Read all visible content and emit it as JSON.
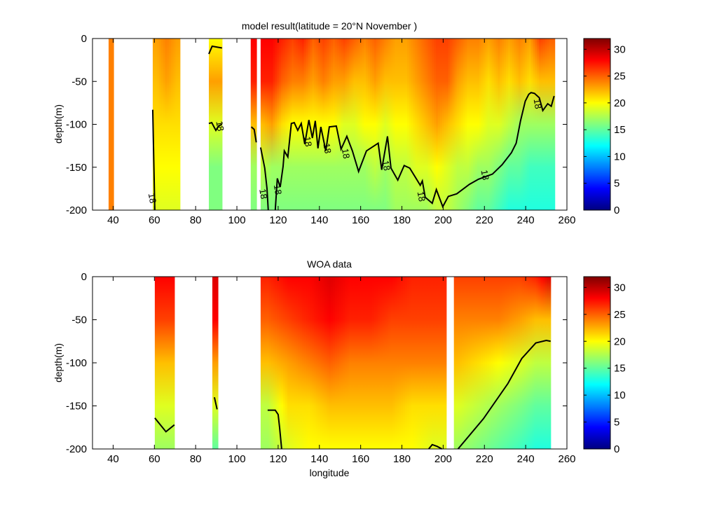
{
  "chart_data": [
    {
      "type": "heatmap",
      "title": "model result(latitude = 20°N  November )",
      "xlabel": "",
      "ylabel": "depth(m)",
      "xlim": [
        30,
        260
      ],
      "ylim": [
        -200,
        0
      ],
      "xticks": [
        40,
        60,
        80,
        100,
        120,
        140,
        160,
        180,
        200,
        220,
        240,
        260
      ],
      "yticks": [
        0,
        -50,
        -100,
        -150,
        -200
      ],
      "profile_depths": [
        0,
        -50,
        -100,
        -150,
        -200
      ],
      "colorbar": {
        "range": [
          0,
          32
        ],
        "ticks": [
          0,
          5,
          10,
          15,
          20,
          25,
          30
        ],
        "colormap": "jet"
      },
      "segments": [
        {
          "lon": [
            37.8,
            40.2
          ],
          "nodes": [
            {
              "lon": 39,
              "t": [
                24,
                24,
                24,
                24,
                24
              ]
            }
          ]
        },
        {
          "lon": [
            59.2,
            72.4
          ],
          "nodes": [
            {
              "lon": 61,
              "t": [
                23,
                22,
                21,
                20,
                19
              ]
            },
            {
              "lon": 66,
              "t": [
                24,
                23,
                21,
                20,
                19
              ]
            },
            {
              "lon": 71,
              "t": [
                23,
                22,
                21,
                20,
                19
              ]
            }
          ]
        },
        {
          "lon": [
            86.4,
            92.8
          ],
          "nodes": [
            {
              "lon": 89.5,
              "t": [
                20,
                23,
                19,
                16,
                16
              ]
            }
          ]
        },
        {
          "lon": [
            106.7,
            109.5
          ],
          "nodes": [
            {
              "lon": 108,
              "t": [
                28,
                27,
                22,
                17,
                16
              ]
            }
          ]
        },
        {
          "lon": [
            111.5,
            254.1
          ],
          "nodes": [
            {
              "lon": 112,
              "t": [
                28,
                27,
                22,
                18,
                16
              ]
            },
            {
              "lon": 117,
              "t": [
                28,
                27,
                23,
                17,
                16
              ]
            },
            {
              "lon": 122,
              "t": [
                27,
                25,
                21,
                17,
                16
              ]
            },
            {
              "lon": 127,
              "t": [
                26,
                24,
                20,
                17,
                16
              ]
            },
            {
              "lon": 132,
              "t": [
                27,
                24,
                20,
                17,
                16
              ]
            },
            {
              "lon": 137,
              "t": [
                25,
                23,
                20,
                17,
                16
              ]
            },
            {
              "lon": 142,
              "t": [
                26,
                24,
                20,
                17,
                16
              ]
            },
            {
              "lon": 147,
              "t": [
                25,
                23,
                20,
                17,
                16
              ]
            },
            {
              "lon": 152,
              "t": [
                26,
                23,
                19,
                17,
                16
              ]
            },
            {
              "lon": 157,
              "t": [
                25,
                22,
                19,
                17,
                16
              ]
            },
            {
              "lon": 162,
              "t": [
                24,
                22,
                20,
                17,
                16
              ]
            },
            {
              "lon": 167,
              "t": [
                25,
                23,
                20,
                18,
                16
              ]
            },
            {
              "lon": 172,
              "t": [
                24,
                22,
                19,
                17,
                16
              ]
            },
            {
              "lon": 177,
              "t": [
                23,
                22,
                20,
                18,
                17
              ]
            },
            {
              "lon": 182,
              "t": [
                23,
                22,
                20,
                18,
                17
              ]
            },
            {
              "lon": 187,
              "t": [
                24,
                23,
                21,
                19,
                17
              ]
            },
            {
              "lon": 192,
              "t": [
                25,
                24,
                22,
                19,
                17
              ]
            },
            {
              "lon": 197,
              "t": [
                26,
                25,
                23,
                20,
                18
              ]
            },
            {
              "lon": 202,
              "t": [
                26,
                25,
                22,
                19,
                18
              ]
            },
            {
              "lon": 207,
              "t": [
                25,
                23,
                21,
                18,
                17
              ]
            },
            {
              "lon": 212,
              "t": [
                24,
                22,
                20,
                18,
                16
              ]
            },
            {
              "lon": 217,
              "t": [
                24,
                22,
                20,
                17,
                15
              ]
            },
            {
              "lon": 222,
              "t": [
                23,
                21,
                19,
                17,
                15
              ]
            },
            {
              "lon": 227,
              "t": [
                24,
                22,
                19,
                16,
                14
              ]
            },
            {
              "lon": 232,
              "t": [
                23,
                21,
                18,
                15,
                13
              ]
            },
            {
              "lon": 237,
              "t": [
                24,
                22,
                17,
                15,
                13
              ]
            },
            {
              "lon": 242,
              "t": [
                23,
                21,
                17,
                14,
                13
              ]
            },
            {
              "lon": 247,
              "t": [
                26,
                22,
                17,
                14,
                13
              ]
            },
            {
              "lon": 252,
              "t": [
                25,
                22,
                17,
                14,
                13
              ]
            }
          ]
        }
      ],
      "contour_level": 18,
      "contours": [
        [
          [
            59.2,
            -83
          ],
          [
            60.2,
            -200
          ]
        ],
        [
          [
            86.4,
            -18
          ],
          [
            88,
            -9
          ],
          [
            92.8,
            -11
          ]
        ],
        [
          [
            86.4,
            -99
          ],
          [
            87.8,
            -98
          ],
          [
            89.8,
            -107
          ],
          [
            91.1,
            -102
          ],
          [
            92.8,
            -100
          ]
        ],
        [
          [
            107,
            -103
          ],
          [
            108.4,
            -106
          ],
          [
            109.4,
            -121
          ]
        ],
        [
          [
            111.5,
            -127
          ],
          [
            113.5,
            -151
          ],
          [
            114.6,
            -175
          ],
          [
            115.2,
            -200
          ]
        ],
        [
          [
            118.6,
            -200
          ],
          [
            119.6,
            -163
          ],
          [
            121.0,
            -173
          ],
          [
            122.4,
            -149
          ],
          [
            123.0,
            -131
          ],
          [
            124.7,
            -138
          ],
          [
            126.4,
            -99
          ],
          [
            127.8,
            -98
          ],
          [
            129.5,
            -107
          ],
          [
            131.2,
            -99
          ],
          [
            132.9,
            -123
          ],
          [
            134.9,
            -95
          ],
          [
            136.6,
            -116
          ],
          [
            138.0,
            -96
          ],
          [
            139.3,
            -128
          ],
          [
            140.7,
            -103
          ],
          [
            143.1,
            -131
          ],
          [
            144.8,
            -103
          ],
          [
            148.2,
            -102
          ],
          [
            150.5,
            -129
          ],
          [
            153.3,
            -114
          ],
          [
            156.0,
            -131
          ],
          [
            159.0,
            -155
          ],
          [
            162.8,
            -131
          ],
          [
            168.5,
            -122
          ],
          [
            170.2,
            -153
          ],
          [
            173.0,
            -114
          ],
          [
            174.7,
            -151
          ],
          [
            178.0,
            -165
          ],
          [
            181.1,
            -148
          ],
          [
            183.8,
            -151
          ],
          [
            188.9,
            -171
          ],
          [
            189.9,
            -166
          ],
          [
            191.3,
            -185
          ],
          [
            194.7,
            -192
          ],
          [
            196.7,
            -176
          ],
          [
            199.8,
            -196
          ],
          [
            202.5,
            -184
          ],
          [
            206.6,
            -181
          ],
          [
            212.7,
            -170
          ],
          [
            217.1,
            -164
          ],
          [
            223.9,
            -158
          ],
          [
            228.6,
            -147
          ],
          [
            233.1,
            -133
          ],
          [
            235.4,
            -122
          ],
          [
            237.5,
            -96
          ],
          [
            239.8,
            -73
          ],
          [
            241.5,
            -65
          ],
          [
            242.6,
            -63
          ],
          [
            244.3,
            -64
          ],
          [
            246.6,
            -69
          ],
          [
            248.3,
            -84
          ],
          [
            250.7,
            -76
          ],
          [
            252.4,
            -79
          ],
          [
            253.8,
            -67
          ]
        ]
      ],
      "contour_labels": [
        {
          "text": "18",
          "lon": 59.2,
          "depth": -186
        },
        {
          "text": "18",
          "lon": 92,
          "depth": -102
        },
        {
          "text": "18",
          "lon": 113,
          "depth": -181
        },
        {
          "text": "18",
          "lon": 120,
          "depth": -176
        },
        {
          "text": "18",
          "lon": 134.6,
          "depth": -120
        },
        {
          "text": "18",
          "lon": 144,
          "depth": -128
        },
        {
          "text": "18",
          "lon": 153,
          "depth": -134
        },
        {
          "text": "18",
          "lon": 172.6,
          "depth": -148
        },
        {
          "text": "18",
          "lon": 189.6,
          "depth": -184
        },
        {
          "text": "18",
          "lon": 220.5,
          "depth": -159
        },
        {
          "text": "18",
          "lon": 246,
          "depth": -76
        }
      ]
    },
    {
      "type": "heatmap",
      "title": "WOA data",
      "xlabel": "longitude",
      "ylabel": "depth(m)",
      "xlim": [
        30,
        260
      ],
      "ylim": [
        -200,
        0
      ],
      "xticks": [
        40,
        60,
        80,
        100,
        120,
        140,
        160,
        180,
        200,
        220,
        240,
        260
      ],
      "yticks": [
        0,
        -50,
        -100,
        -150,
        -200
      ],
      "profile_depths": [
        0,
        -50,
        -100,
        -150,
        -200
      ],
      "colorbar": {
        "range": [
          0,
          32
        ],
        "ticks": [
          0,
          5,
          10,
          15,
          20,
          25,
          30
        ],
        "colormap": "jet"
      },
      "segments": [
        {
          "lon": [
            60.2,
            69.7
          ],
          "nodes": [
            {
              "lon": 65,
              "t": [
                28,
                26,
                22,
                19,
                17
              ]
            }
          ]
        },
        {
          "lon": [
            88.1,
            90.8
          ],
          "nodes": [
            {
              "lon": 89.5,
              "t": [
                29,
                28,
                23,
                19,
                15
              ]
            }
          ]
        },
        {
          "lon": [
            111.5,
            201.5
          ],
          "nodes": [
            {
              "lon": 115,
              "t": [
                27,
                25,
                22,
                18,
                17
              ]
            },
            {
              "lon": 125,
              "t": [
                28,
                26,
                23,
                21,
                19
              ]
            },
            {
              "lon": 135,
              "t": [
                28,
                27,
                24,
                21,
                20
              ]
            },
            {
              "lon": 145,
              "t": [
                29,
                28,
                25,
                22,
                20
              ]
            },
            {
              "lon": 155,
              "t": [
                28,
                27,
                24,
                22,
                20
              ]
            },
            {
              "lon": 165,
              "t": [
                28,
                27,
                24,
                22,
                20
              ]
            },
            {
              "lon": 175,
              "t": [
                28,
                26,
                24,
                22,
                20
              ]
            },
            {
              "lon": 185,
              "t": [
                27,
                26,
                24,
                21,
                20
              ]
            },
            {
              "lon": 195,
              "t": [
                27,
                26,
                24,
                21,
                19
              ]
            }
          ]
        },
        {
          "lon": [
            205.2,
            252.1
          ],
          "nodes": [
            {
              "lon": 207,
              "t": [
                26,
                24,
                22,
                19,
                17
              ]
            },
            {
              "lon": 217,
              "t": [
                26,
                24,
                21,
                18,
                16
              ]
            },
            {
              "lon": 227,
              "t": [
                26,
                24,
                20,
                17,
                15
              ]
            },
            {
              "lon": 237,
              "t": [
                26,
                23,
                19,
                16,
                14
              ]
            },
            {
              "lon": 245,
              "t": [
                27,
                22,
                18,
                15,
                13
              ]
            },
            {
              "lon": 251,
              "t": [
                29,
                22,
                18,
                15,
                13
              ]
            }
          ]
        }
      ],
      "contour_level": 18,
      "contours": [
        [
          [
            60.2,
            -164
          ],
          [
            65.6,
            -180
          ],
          [
            69.7,
            -172
          ]
        ],
        [
          [
            89.1,
            -140
          ],
          [
            90.4,
            -154
          ]
        ],
        [
          [
            114.9,
            -155
          ],
          [
            118.6,
            -155
          ],
          [
            120.0,
            -160
          ],
          [
            120.7,
            -175
          ],
          [
            121.7,
            -200
          ]
        ],
        [
          [
            193.0,
            -200
          ],
          [
            194.7,
            -195
          ],
          [
            197.1,
            -197
          ],
          [
            199.4,
            -200
          ]
        ],
        [
          [
            207.2,
            -200
          ],
          [
            219.5,
            -165
          ],
          [
            231.4,
            -124
          ],
          [
            238.1,
            -95
          ],
          [
            244.9,
            -77
          ],
          [
            250.0,
            -74
          ],
          [
            252.1,
            -75
          ]
        ]
      ],
      "contour_labels": []
    }
  ]
}
